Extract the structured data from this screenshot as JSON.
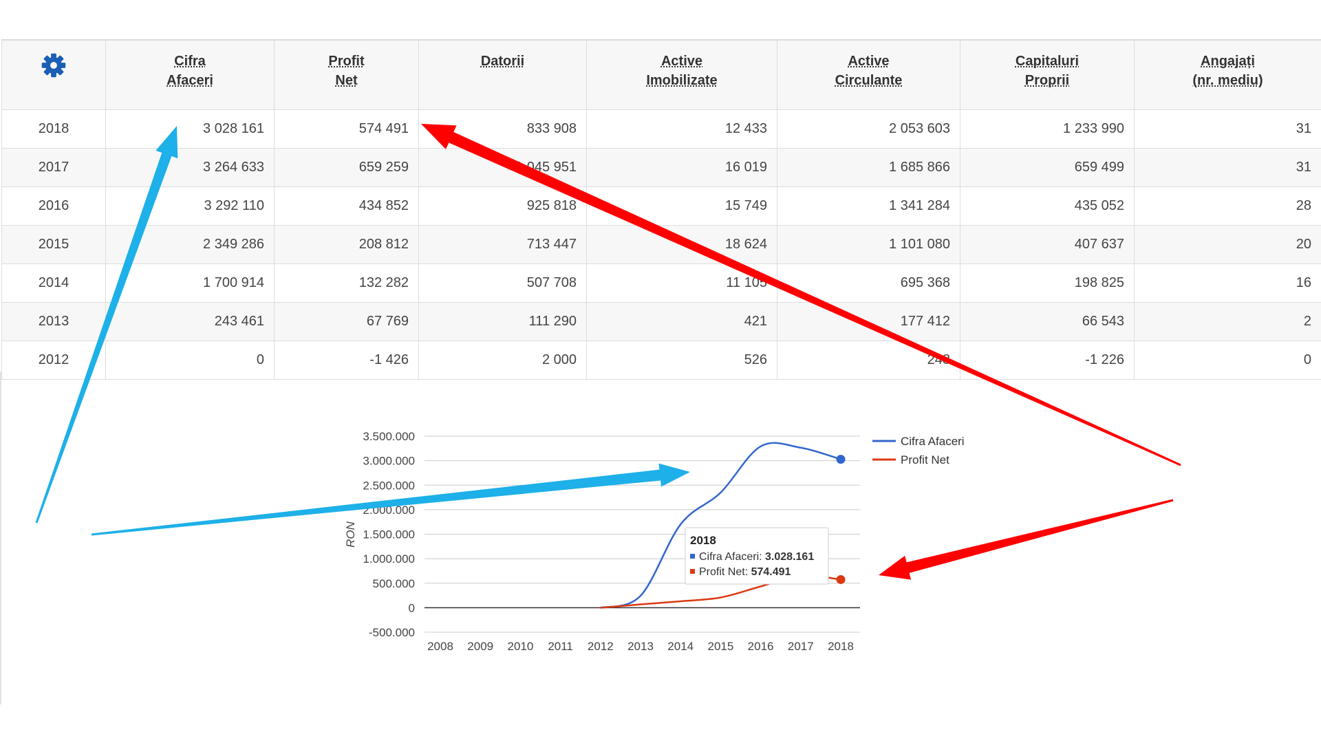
{
  "table": {
    "columns": [
      {
        "line1": "Cifra",
        "line2": "Afaceri"
      },
      {
        "line1": "Profit",
        "line2": "Net"
      },
      {
        "line1": "Datorii",
        "line2": ""
      },
      {
        "line1": "Active",
        "line2": "Imobilizate"
      },
      {
        "line1": "Active",
        "line2": "Circulante"
      },
      {
        "line1": "Capitaluri",
        "line2": "Proprii"
      },
      {
        "line1": "Angajați",
        "line2": "(nr. mediu)"
      }
    ],
    "rows": [
      {
        "year": "2018",
        "cells": [
          "3 028 161",
          "574 491",
          "833 908",
          "12 433",
          "2 053 603",
          "1 233 990",
          "31"
        ]
      },
      {
        "year": "2017",
        "cells": [
          "3 264 633",
          "659 259",
          "1 045 951",
          "16 019",
          "1 685 866",
          "659 499",
          "31"
        ]
      },
      {
        "year": "2016",
        "cells": [
          "3 292 110",
          "434 852",
          "925 818",
          "15 749",
          "1 341 284",
          "435 052",
          "28"
        ]
      },
      {
        "year": "2015",
        "cells": [
          "2 349 286",
          "208 812",
          "713 447",
          "18 624",
          "1 101 080",
          "407 637",
          "20"
        ]
      },
      {
        "year": "2014",
        "cells": [
          "1 700 914",
          "132 282",
          "507 708",
          "11 105",
          "695 368",
          "198 825",
          "16"
        ]
      },
      {
        "year": "2013",
        "cells": [
          "243 461",
          "67 769",
          "111 290",
          "421",
          "177 412",
          "66 543",
          "2"
        ]
      },
      {
        "year": "2012",
        "cells": [
          "0",
          "-1 426",
          "2 000",
          "526",
          "248",
          "-1 226",
          "0"
        ]
      }
    ]
  },
  "settings_icon": "gear-icon",
  "colors": {
    "gear": "#1a5fb4",
    "cifra": "#3366cc",
    "profit": "#dc3912",
    "arrow_blue": "#1eb0e8",
    "arrow_red": "#ff0000"
  },
  "chart_data": {
    "type": "line",
    "x": [
      2008,
      2009,
      2010,
      2011,
      2012,
      2013,
      2014,
      2015,
      2016,
      2017,
      2018
    ],
    "x_tick_labels": [
      "2008",
      "2009",
      "2010",
      "2011",
      "2012",
      "2013",
      "2014",
      "2015",
      "2016",
      "2017",
      "2018"
    ],
    "y_tick_labels": [
      "3.500.000",
      "3.000.000",
      "2.500.000",
      "2.000.000",
      "1.500.000",
      "1.000.000",
      "500.000",
      "0",
      "-500.000"
    ],
    "y_ticks": [
      3500000,
      3000000,
      2500000,
      2000000,
      1500000,
      1000000,
      500000,
      0,
      -500000
    ],
    "ylim": [
      -500000,
      3500000
    ],
    "xlim": [
      2008,
      2018
    ],
    "ylabel": "RON",
    "grid": true,
    "legend_position": "right",
    "series": [
      {
        "name": "Cifra Afaceri",
        "x": [
          2012,
          2013,
          2014,
          2015,
          2016,
          2017,
          2018
        ],
        "values": [
          0,
          243461,
          1700914,
          2349286,
          3292110,
          3264633,
          3028161
        ]
      },
      {
        "name": "Profit Net",
        "x": [
          2012,
          2013,
          2014,
          2015,
          2016,
          2017,
          2018
        ],
        "values": [
          -1426,
          67769,
          132282,
          208812,
          434852,
          659259,
          574491
        ]
      }
    ],
    "tooltip": {
      "title": "2018",
      "rows": [
        {
          "label": "Cifra Afaceri: ",
          "value": "3.028.161"
        },
        {
          "label": "Profit Net: ",
          "value": "574.491"
        }
      ]
    }
  }
}
